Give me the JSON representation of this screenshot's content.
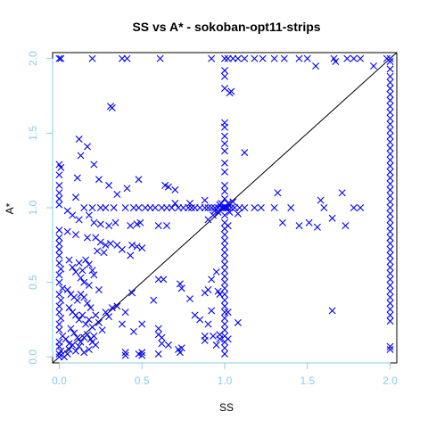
{
  "chart_data": {
    "type": "scatter",
    "title": "SS vs A* - sokoban-opt11-strips",
    "xlabel": "SS",
    "ylabel": "A*",
    "xlim": [
      -0.04,
      2.04
    ],
    "ylim": [
      -0.04,
      2.04
    ],
    "xticks": [
      "0.0",
      "0.5",
      "1.0",
      "1.5",
      "2.0"
    ],
    "yticks": [
      "0.0",
      "0.5",
      "1.0",
      "1.5",
      "2.0"
    ],
    "marker": "x",
    "marker_color": "#0000ff",
    "axis_color": "#87ceeb",
    "reference_line": "y = x",
    "grid": false,
    "points": [
      [
        0.0,
        2.0
      ],
      [
        0.01,
        2.0
      ],
      [
        0.2,
        2.0
      ],
      [
        0.38,
        2.0
      ],
      [
        0.41,
        2.0
      ],
      [
        0.61,
        2.0
      ],
      [
        0.92,
        2.0
      ],
      [
        1.0,
        2.0
      ],
      [
        1.02,
        2.0
      ],
      [
        1.05,
        2.0
      ],
      [
        1.08,
        2.0
      ],
      [
        1.12,
        2.0
      ],
      [
        1.18,
        2.0
      ],
      [
        1.23,
        2.0
      ],
      [
        1.3,
        2.0
      ],
      [
        1.36,
        2.0
      ],
      [
        1.45,
        2.0
      ],
      [
        1.5,
        2.0
      ],
      [
        1.66,
        2.0
      ],
      [
        1.67,
        1.98
      ],
      [
        1.74,
        2.0
      ],
      [
        1.78,
        2.0
      ],
      [
        1.82,
        2.0
      ],
      [
        1.98,
        2.0
      ],
      [
        2.0,
        2.0
      ],
      [
        1.55,
        1.95
      ],
      [
        1.9,
        1.95
      ],
      [
        0.31,
        1.68
      ],
      [
        0.32,
        1.67
      ],
      [
        1.0,
        1.92
      ],
      [
        1.0,
        1.88
      ],
      [
        1.0,
        1.8
      ],
      [
        1.03,
        1.77
      ],
      [
        1.04,
        1.78
      ],
      [
        1.0,
        1.57
      ],
      [
        1.0,
        1.54
      ],
      [
        1.0,
        1.48
      ],
      [
        1.0,
        1.43
      ],
      [
        1.0,
        1.38
      ],
      [
        1.0,
        1.3
      ],
      [
        1.0,
        1.24
      ],
      [
        1.0,
        1.15
      ],
      [
        1.0,
        1.11
      ],
      [
        1.0,
        1.06
      ],
      [
        1.12,
        1.37
      ],
      [
        0.12,
        1.46
      ],
      [
        0.13,
        1.35
      ],
      [
        0.17,
        1.41
      ],
      [
        0.0,
        1.29
      ],
      [
        0.01,
        1.27
      ],
      [
        0.0,
        1.22
      ],
      [
        0.0,
        1.15
      ],
      [
        0.0,
        1.1
      ],
      [
        0.0,
        1.06
      ],
      [
        0.0,
        1.02
      ],
      [
        0.21,
        1.29
      ],
      [
        0.11,
        1.2
      ],
      [
        0.24,
        1.19
      ],
      [
        0.3,
        1.15
      ],
      [
        0.41,
        1.13
      ],
      [
        0.48,
        1.19
      ],
      [
        0.64,
        1.15
      ],
      [
        0.66,
        1.14
      ],
      [
        0.7,
        1.12
      ],
      [
        0.35,
        1.09
      ],
      [
        0.1,
        1.07
      ],
      [
        0.15,
        1.0
      ],
      [
        0.2,
        1.0
      ],
      [
        0.25,
        1.0
      ],
      [
        0.28,
        1.0
      ],
      [
        0.33,
        1.0
      ],
      [
        0.4,
        1.0
      ],
      [
        0.45,
        1.0
      ],
      [
        0.48,
        1.0
      ],
      [
        0.52,
        1.0
      ],
      [
        0.55,
        1.0
      ],
      [
        0.58,
        1.0
      ],
      [
        0.62,
        1.0
      ],
      [
        0.65,
        1.0
      ],
      [
        0.68,
        1.0
      ],
      [
        0.72,
        1.0
      ],
      [
        0.75,
        1.0
      ],
      [
        0.78,
        1.0
      ],
      [
        0.8,
        1.0
      ],
      [
        0.82,
        1.0
      ],
      [
        0.85,
        1.0
      ],
      [
        0.88,
        1.0
      ],
      [
        0.9,
        1.0
      ],
      [
        0.92,
        1.0
      ],
      [
        0.94,
        1.0
      ],
      [
        0.96,
        1.0
      ],
      [
        0.98,
        1.0
      ],
      [
        0.99,
        1.0
      ],
      [
        1.0,
        1.0
      ],
      [
        1.01,
        1.0
      ],
      [
        1.02,
        1.0
      ],
      [
        1.04,
        1.0
      ],
      [
        1.06,
        1.0
      ],
      [
        1.09,
        1.0
      ],
      [
        1.12,
        1.0
      ],
      [
        1.18,
        1.0
      ],
      [
        1.22,
        1.0
      ],
      [
        1.3,
        1.0
      ],
      [
        1.4,
        1.0
      ],
      [
        1.6,
        1.0
      ],
      [
        1.78,
        1.0
      ],
      [
        1.32,
        1.1
      ],
      [
        1.71,
        1.1
      ],
      [
        1.58,
        1.05
      ],
      [
        1.51,
        0.9
      ],
      [
        1.45,
        0.88
      ],
      [
        1.35,
        0.9
      ],
      [
        1.56,
        0.87
      ],
      [
        1.65,
        0.93
      ],
      [
        1.73,
        0.88
      ],
      [
        1.82,
        1.0
      ],
      [
        0.7,
        1.03
      ],
      [
        0.79,
        1.03
      ],
      [
        0.88,
        1.05
      ],
      [
        0.94,
        0.98
      ],
      [
        0.96,
        0.97
      ],
      [
        0.93,
        0.95
      ],
      [
        0.9,
        0.92
      ],
      [
        0.97,
        1.02
      ],
      [
        0.98,
        1.03
      ],
      [
        1.02,
        1.03
      ],
      [
        1.03,
        0.97
      ],
      [
        1.05,
        1.04
      ],
      [
        1.08,
        0.96
      ],
      [
        0.05,
        0.98
      ],
      [
        0.08,
        0.95
      ],
      [
        0.12,
        0.92
      ],
      [
        0.18,
        0.95
      ],
      [
        0.21,
        0.9
      ],
      [
        0.25,
        0.89
      ],
      [
        0.3,
        0.88
      ],
      [
        0.34,
        0.9
      ],
      [
        0.43,
        0.88
      ],
      [
        0.47,
        0.89
      ],
      [
        0.49,
        0.9
      ],
      [
        0.6,
        0.88
      ],
      [
        0.65,
        0.88
      ],
      [
        0.0,
        0.85
      ],
      [
        0.05,
        0.84
      ],
      [
        0.1,
        0.82
      ],
      [
        0.17,
        0.8
      ],
      [
        0.22,
        0.8
      ],
      [
        0.25,
        0.77
      ],
      [
        0.28,
        0.75
      ],
      [
        0.31,
        0.76
      ],
      [
        0.35,
        0.75
      ],
      [
        0.38,
        0.72
      ],
      [
        0.44,
        0.75
      ],
      [
        0.47,
        0.74
      ],
      [
        0.5,
        0.73
      ],
      [
        0.23,
        0.71
      ],
      [
        0.27,
        0.7
      ],
      [
        0.43,
        0.68
      ],
      [
        0.0,
        0.8
      ],
      [
        0.0,
        0.76
      ],
      [
        0.0,
        0.72
      ],
      [
        0.0,
        0.68
      ],
      [
        0.0,
        0.63
      ],
      [
        0.01,
        0.59
      ],
      [
        0.0,
        0.55
      ],
      [
        0.0,
        0.5
      ],
      [
        0.02,
        0.46
      ],
      [
        0.0,
        0.42
      ],
      [
        0.01,
        0.38
      ],
      [
        0.0,
        0.34
      ],
      [
        0.0,
        0.3
      ],
      [
        0.01,
        0.26
      ],
      [
        0.0,
        0.22
      ],
      [
        0.0,
        0.18
      ],
      [
        0.02,
        0.14
      ],
      [
        0.0,
        0.1
      ],
      [
        0.0,
        0.07
      ],
      [
        0.01,
        0.04
      ],
      [
        0.0,
        0.02
      ],
      [
        0.0,
        0.0
      ],
      [
        0.03,
        0.0
      ],
      [
        0.05,
        0.02
      ],
      [
        0.06,
        0.05
      ],
      [
        0.08,
        0.08
      ],
      [
        0.1,
        0.04
      ],
      [
        0.12,
        0.07
      ],
      [
        0.15,
        0.03
      ],
      [
        0.18,
        0.05
      ],
      [
        0.2,
        0.1
      ],
      [
        0.22,
        0.08
      ],
      [
        0.06,
        0.65
      ],
      [
        0.08,
        0.6
      ],
      [
        0.1,
        0.57
      ],
      [
        0.12,
        0.63
      ],
      [
        0.14,
        0.58
      ],
      [
        0.16,
        0.65
      ],
      [
        0.18,
        0.62
      ],
      [
        0.2,
        0.58
      ],
      [
        0.13,
        0.53
      ],
      [
        0.15,
        0.5
      ],
      [
        0.18,
        0.48
      ],
      [
        0.21,
        0.55
      ],
      [
        0.24,
        0.45
      ],
      [
        0.05,
        0.45
      ],
      [
        0.07,
        0.42
      ],
      [
        0.09,
        0.4
      ],
      [
        0.11,
        0.38
      ],
      [
        0.13,
        0.42
      ],
      [
        0.15,
        0.4
      ],
      [
        0.17,
        0.36
      ],
      [
        0.19,
        0.33
      ],
      [
        0.06,
        0.33
      ],
      [
        0.08,
        0.3
      ],
      [
        0.1,
        0.28
      ],
      [
        0.12,
        0.25
      ],
      [
        0.14,
        0.28
      ],
      [
        0.16,
        0.22
      ],
      [
        0.18,
        0.25
      ],
      [
        0.2,
        0.2
      ],
      [
        0.22,
        0.28
      ],
      [
        0.24,
        0.23
      ],
      [
        0.26,
        0.18
      ],
      [
        0.28,
        0.3
      ],
      [
        0.3,
        0.27
      ],
      [
        0.32,
        0.33
      ],
      [
        0.35,
        0.34
      ],
      [
        0.38,
        0.22
      ],
      [
        0.4,
        0.3
      ],
      [
        0.44,
        0.43
      ],
      [
        0.45,
        0.17
      ],
      [
        0.5,
        0.22
      ],
      [
        0.07,
        0.19
      ],
      [
        0.09,
        0.16
      ],
      [
        0.11,
        0.13
      ],
      [
        0.13,
        0.1
      ],
      [
        0.15,
        0.13
      ],
      [
        0.17,
        0.15
      ],
      [
        0.19,
        0.12
      ],
      [
        0.21,
        0.14
      ],
      [
        0.04,
        0.12
      ],
      [
        0.06,
        0.09
      ],
      [
        0.6,
        0.52
      ],
      [
        0.63,
        0.52
      ],
      [
        0.57,
        0.38
      ],
      [
        0.6,
        0.19
      ],
      [
        0.6,
        0.15
      ],
      [
        0.62,
        0.13
      ],
      [
        0.62,
        0.09
      ],
      [
        0.66,
        0.08
      ],
      [
        0.72,
        0.05
      ],
      [
        0.74,
        0.06
      ],
      [
        0.73,
        0.03
      ],
      [
        0.4,
        0.03
      ],
      [
        0.4,
        0.01
      ],
      [
        0.5,
        0.01
      ],
      [
        0.5,
        0.03
      ],
      [
        0.48,
        0.02
      ],
      [
        0.6,
        0.02
      ],
      [
        0.73,
        0.49
      ],
      [
        0.74,
        0.46
      ],
      [
        0.79,
        0.39
      ],
      [
        0.82,
        0.28
      ],
      [
        0.85,
        0.25
      ],
      [
        0.88,
        0.43
      ],
      [
        0.9,
        0.45
      ],
      [
        0.92,
        0.52
      ],
      [
        0.92,
        0.31
      ],
      [
        0.9,
        0.22
      ],
      [
        0.88,
        0.14
      ],
      [
        0.88,
        0.11
      ],
      [
        0.95,
        0.57
      ],
      [
        0.96,
        0.44
      ],
      [
        0.97,
        0.42
      ],
      [
        0.97,
        0.15
      ],
      [
        0.97,
        0.12
      ],
      [
        0.93,
        0.14
      ],
      [
        0.95,
        0.08
      ],
      [
        1.0,
        0.95
      ],
      [
        1.0,
        0.9
      ],
      [
        1.0,
        0.86
      ],
      [
        1.0,
        0.82
      ],
      [
        1.0,
        0.78
      ],
      [
        1.0,
        0.74
      ],
      [
        1.0,
        0.7
      ],
      [
        1.0,
        0.66
      ],
      [
        1.0,
        0.62
      ],
      [
        1.0,
        0.58
      ],
      [
        1.0,
        0.54
      ],
      [
        1.0,
        0.5
      ],
      [
        1.0,
        0.46
      ],
      [
        1.0,
        0.42
      ],
      [
        1.0,
        0.38
      ],
      [
        1.0,
        0.34
      ],
      [
        1.0,
        0.3
      ],
      [
        1.0,
        0.26
      ],
      [
        1.0,
        0.22
      ],
      [
        1.0,
        0.18
      ],
      [
        1.0,
        0.14
      ],
      [
        1.0,
        0.1
      ],
      [
        1.0,
        0.06
      ],
      [
        1.0,
        0.02
      ],
      [
        1.02,
        0.88
      ],
      [
        1.02,
        0.3
      ],
      [
        1.02,
        0.12
      ],
      [
        1.08,
        0.23
      ],
      [
        1.65,
        0.31
      ],
      [
        2.0,
        1.98
      ],
      [
        2.0,
        1.93
      ],
      [
        2.0,
        1.88
      ],
      [
        2.0,
        1.84
      ],
      [
        2.0,
        1.8
      ],
      [
        2.0,
        1.76
      ],
      [
        2.0,
        1.72
      ],
      [
        2.0,
        1.68
      ],
      [
        2.0,
        1.64
      ],
      [
        2.0,
        1.6
      ],
      [
        2.0,
        1.56
      ],
      [
        2.0,
        1.52
      ],
      [
        2.0,
        1.48
      ],
      [
        2.0,
        1.44
      ],
      [
        2.0,
        1.4
      ],
      [
        2.0,
        1.36
      ],
      [
        2.0,
        1.32
      ],
      [
        2.0,
        1.28
      ],
      [
        2.0,
        1.24
      ],
      [
        2.0,
        1.2
      ],
      [
        2.0,
        1.16
      ],
      [
        2.0,
        1.12
      ],
      [
        2.0,
        1.08
      ],
      [
        2.0,
        1.04
      ],
      [
        2.0,
        1.0
      ],
      [
        2.0,
        0.96
      ],
      [
        2.0,
        0.92
      ],
      [
        2.0,
        0.88
      ],
      [
        2.0,
        0.84
      ],
      [
        2.0,
        0.8
      ],
      [
        2.0,
        0.76
      ],
      [
        2.0,
        0.72
      ],
      [
        2.0,
        0.68
      ],
      [
        2.0,
        0.64
      ],
      [
        2.0,
        0.6
      ],
      [
        2.0,
        0.56
      ],
      [
        2.0,
        0.52
      ],
      [
        2.0,
        0.48
      ],
      [
        2.0,
        0.44
      ],
      [
        2.0,
        0.4
      ],
      [
        2.0,
        0.36
      ],
      [
        2.0,
        0.32
      ],
      [
        2.0,
        0.28
      ],
      [
        2.0,
        0.24
      ],
      [
        2.0,
        0.07
      ],
      [
        2.0,
        0.05
      ]
    ]
  }
}
